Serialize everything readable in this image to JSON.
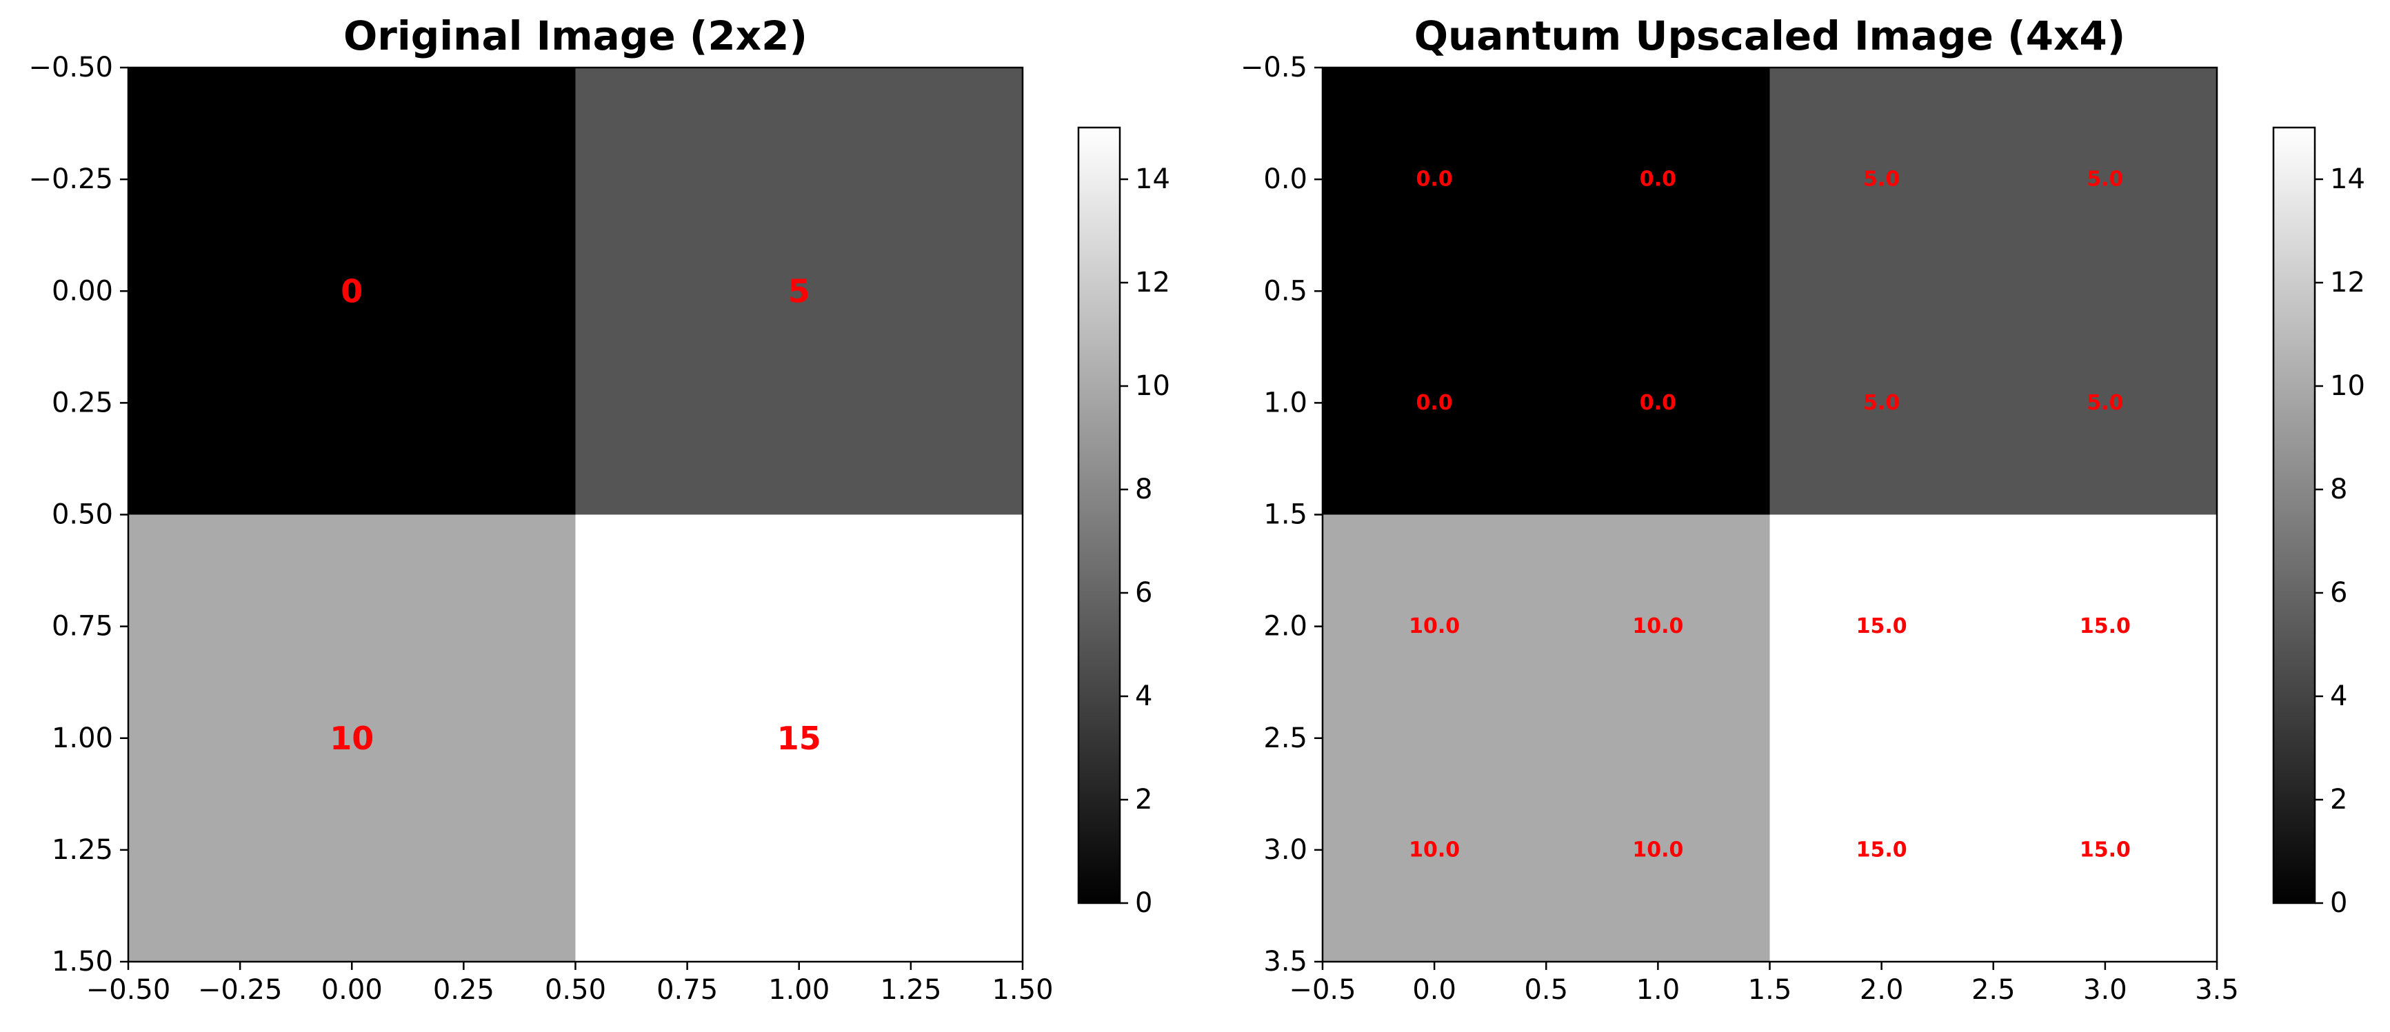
{
  "chart_data": [
    {
      "type": "heatmap",
      "title": "Original Image (2x2)",
      "xlabel": "",
      "ylabel": "",
      "values": [
        [
          0,
          5
        ],
        [
          10,
          15
        ]
      ],
      "cell_labels": [
        [
          "0",
          "5"
        ],
        [
          "10",
          "15"
        ]
      ],
      "xlim": [
        -0.5,
        1.5
      ],
      "ylim": [
        1.5,
        -0.5
      ],
      "xticks": [
        -0.5,
        -0.25,
        0.0,
        0.25,
        0.5,
        0.75,
        1.0,
        1.25,
        1.5
      ],
      "xtick_labels": [
        "−0.50",
        "−0.25",
        "0.00",
        "0.25",
        "0.50",
        "0.75",
        "1.00",
        "1.25",
        "1.50"
      ],
      "yticks": [
        -0.5,
        -0.25,
        0.0,
        0.25,
        0.5,
        0.75,
        1.0,
        1.25,
        1.5
      ],
      "ytick_labels": [
        "−0.50",
        "−0.25",
        "0.00",
        "0.25",
        "0.50",
        "0.75",
        "1.00",
        "1.25",
        "1.50"
      ],
      "colormap": "gray",
      "colorbar": {
        "vmin": 0,
        "vmax": 15,
        "ticks": [
          0,
          2,
          4,
          6,
          8,
          10,
          12,
          14
        ],
        "tick_labels": [
          "0",
          "2",
          "4",
          "6",
          "8",
          "10",
          "12",
          "14"
        ]
      },
      "label_color": "#ff0000",
      "grid": false
    },
    {
      "type": "heatmap",
      "title": "Quantum Upscaled Image (4x4)",
      "xlabel": "",
      "ylabel": "",
      "values": [
        [
          0,
          0,
          5,
          5
        ],
        [
          0,
          0,
          5,
          5
        ],
        [
          10,
          10,
          15,
          15
        ],
        [
          10,
          10,
          15,
          15
        ]
      ],
      "cell_labels": [
        [
          "0.0",
          "0.0",
          "5.0",
          "5.0"
        ],
        [
          "0.0",
          "0.0",
          "5.0",
          "5.0"
        ],
        [
          "10.0",
          "10.0",
          "15.0",
          "15.0"
        ],
        [
          "10.0",
          "10.0",
          "15.0",
          "15.0"
        ]
      ],
      "xlim": [
        -0.5,
        3.5
      ],
      "ylim": [
        3.5,
        -0.5
      ],
      "xticks": [
        -0.5,
        0.0,
        0.5,
        1.0,
        1.5,
        2.0,
        2.5,
        3.0,
        3.5
      ],
      "xtick_labels": [
        "−0.5",
        "0.0",
        "0.5",
        "1.0",
        "1.5",
        "2.0",
        "2.5",
        "3.0",
        "3.5"
      ],
      "yticks": [
        -0.5,
        0.0,
        0.5,
        1.0,
        1.5,
        2.0,
        2.5,
        3.0,
        3.5
      ],
      "ytick_labels": [
        "−0.5",
        "0.0",
        "0.5",
        "1.0",
        "1.5",
        "2.0",
        "2.5",
        "3.0",
        "3.5"
      ],
      "colormap": "gray",
      "colorbar": {
        "vmin": 0,
        "vmax": 15,
        "ticks": [
          0,
          2,
          4,
          6,
          8,
          10,
          12,
          14
        ],
        "tick_labels": [
          "0",
          "2",
          "4",
          "6",
          "8",
          "10",
          "12",
          "14"
        ]
      },
      "label_color": "#ff0000",
      "grid": false
    }
  ]
}
